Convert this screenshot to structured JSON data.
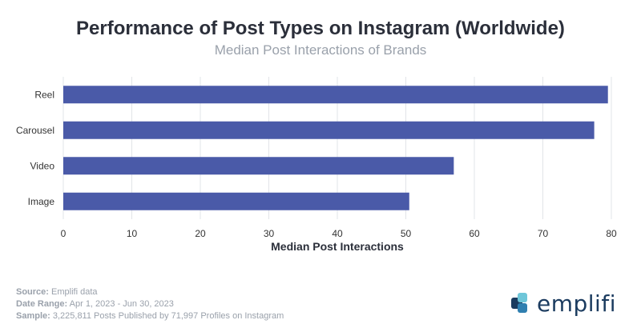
{
  "chart_data": {
    "type": "bar",
    "orientation": "horizontal",
    "title": "Performance of Post Types on Instagram (Worldwide)",
    "subtitle": "Median Post Interactions of Brands",
    "xlabel": "Median Post Interactions",
    "ylabel": "",
    "categories": [
      "Reel",
      "Carousel",
      "Video",
      "Image"
    ],
    "values": [
      79.5,
      77.5,
      57,
      50.5
    ],
    "xlim": [
      0,
      80
    ],
    "xticks": [
      0,
      10,
      20,
      30,
      40,
      50,
      60,
      70,
      80
    ],
    "grid": true,
    "bar_color": "#4a5aa8",
    "grid_color": "#e2e4e8"
  },
  "footer": {
    "source_label": "Source:",
    "source_value": "Emplifi data",
    "date_label": "Date Range:",
    "date_value": "Apr 1, 2023 - Jun 30, 2023",
    "sample_label": "Sample:",
    "sample_value": "3,225,811 Posts Published by 71,997 Profiles on Instagram"
  },
  "logo": {
    "text": "emplifi",
    "icon": "emplifi-logo-icon"
  }
}
